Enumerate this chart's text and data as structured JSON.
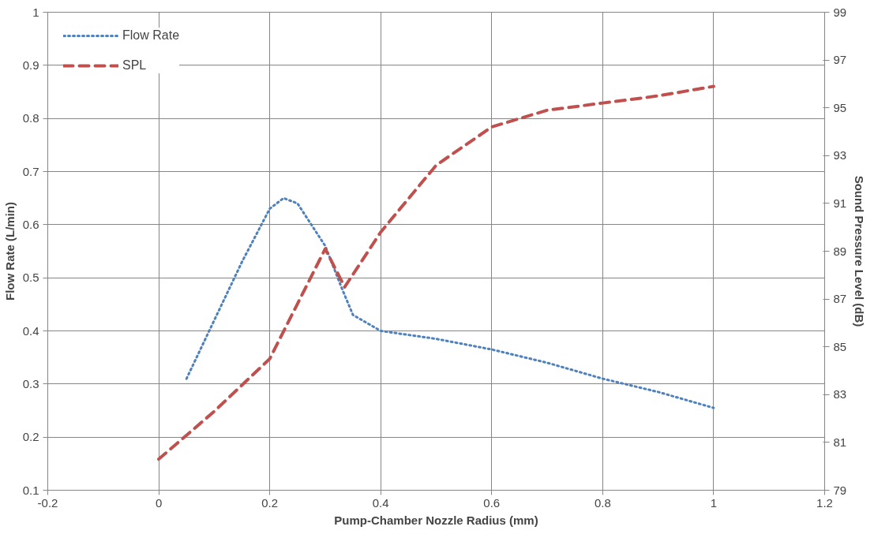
{
  "chart_data": {
    "type": "line",
    "xlabel": "Pump-Chamber Nozzle Radius (mm)",
    "ylabel": "Flow Rate (L/min)",
    "y2label": "Sound Pressure Level (dB)",
    "xlim": [
      -0.2,
      1.2
    ],
    "xticks": [
      -0.2,
      0,
      0.2,
      0.4,
      0.6,
      0.8,
      1,
      1.2
    ],
    "ylim": [
      0.1,
      1
    ],
    "yticks": [
      0.1,
      0.2,
      0.3,
      0.4,
      0.5,
      0.6,
      0.7,
      0.8,
      0.9,
      1
    ],
    "y2lim": [
      79,
      99
    ],
    "y2ticks": [
      79,
      81,
      83,
      85,
      87,
      89,
      91,
      93,
      95,
      97,
      99
    ],
    "grid": true,
    "legend": "top left",
    "marker": "none",
    "series": [
      {
        "name": "Flow Rate",
        "color": "#4f81bd",
        "line_style": "dotted",
        "x": [
          0.05,
          0.1,
          0.15,
          0.2,
          0.225,
          0.25,
          0.3,
          0.33,
          0.35,
          0.4,
          0.5,
          0.6,
          0.7,
          0.8,
          0.9,
          1.0
        ],
        "values": [
          0.31,
          0.42,
          0.53,
          0.63,
          0.65,
          0.64,
          0.56,
          0.48,
          0.43,
          0.4,
          0.385,
          0.365,
          0.34,
          0.31,
          0.285,
          0.255
        ]
      },
      {
        "name": "SPL",
        "color": "#c0504d",
        "line_style": "dashed",
        "axis": "y2",
        "x": [
          0.0,
          0.1,
          0.2,
          0.3,
          0.335,
          0.4,
          0.5,
          0.6,
          0.7,
          0.8,
          0.9,
          1.0
        ],
        "values": [
          80.3,
          82.3,
          84.5,
          89.1,
          87.5,
          89.8,
          92.6,
          94.2,
          94.9,
          95.2,
          95.5,
          95.9
        ]
      }
    ]
  }
}
